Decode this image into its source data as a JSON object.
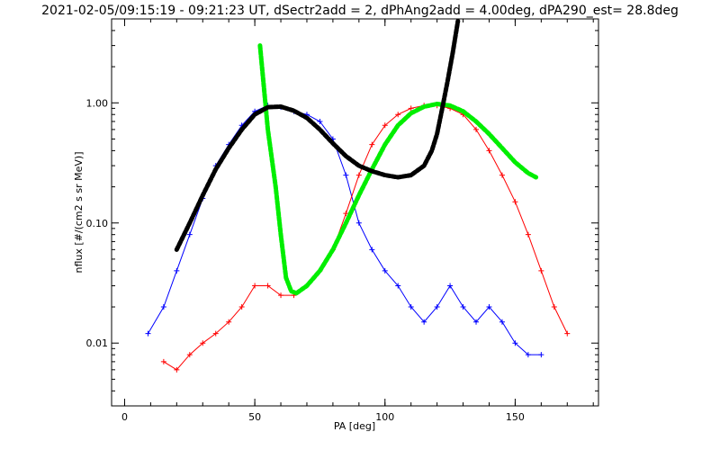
{
  "header": {
    "title": "2021-02-05/09:15:19 - 09:21:23 UT, dSectr2add = 2, dPhAng2add = 4.00deg, dPA290_est=  28.8deg"
  },
  "colors": {
    "blue": "#0000ff",
    "red": "#ff0000",
    "green": "#00ee00",
    "black": "#000000"
  },
  "chart_data": {
    "type": "scatter",
    "xlabel": "PA [deg]",
    "ylabel": "nflux [#/(cm2 s sr MeV)]",
    "xlim": [
      -5,
      182
    ],
    "ylim": [
      0.003,
      5.0
    ],
    "yscale": "log",
    "grid": false,
    "x_ticks": [
      0,
      50,
      100,
      150
    ],
    "x_tick_labels": [
      "0",
      "50",
      "100",
      "150"
    ],
    "y_ticks": [
      0.01,
      0.1,
      1.0
    ],
    "y_tick_labels": [
      "0.01",
      "0.10",
      "1.00"
    ],
    "series": [
      {
        "color": "blue",
        "style": "line+cross",
        "x": [
          9,
          15,
          20,
          25,
          30,
          35,
          40,
          45,
          50,
          55,
          60,
          65,
          70,
          75,
          80,
          85,
          90,
          95,
          100,
          105,
          110,
          115,
          120,
          125,
          130,
          135,
          140,
          145,
          150,
          155,
          160
        ],
        "y": [
          0.012,
          0.02,
          0.04,
          0.08,
          0.16,
          0.3,
          0.45,
          0.65,
          0.85,
          0.95,
          0.92,
          0.85,
          0.8,
          0.7,
          0.5,
          0.25,
          0.1,
          0.06,
          0.04,
          0.03,
          0.02,
          0.015,
          0.02,
          0.03,
          0.02,
          0.015,
          0.02,
          0.015,
          0.01,
          0.008,
          0.008
        ]
      },
      {
        "color": "red",
        "style": "line+cross",
        "x": [
          15,
          20,
          25,
          30,
          35,
          40,
          45,
          50,
          55,
          60,
          65,
          70,
          75,
          80,
          85,
          90,
          95,
          100,
          105,
          110,
          115,
          120,
          125,
          130,
          135,
          140,
          145,
          150,
          155,
          160,
          165,
          170
        ],
        "y": [
          0.007,
          0.006,
          0.008,
          0.01,
          0.012,
          0.015,
          0.02,
          0.03,
          0.03,
          0.025,
          0.025,
          0.03,
          0.04,
          0.06,
          0.12,
          0.25,
          0.45,
          0.65,
          0.8,
          0.9,
          0.95,
          0.95,
          0.9,
          0.8,
          0.6,
          0.4,
          0.25,
          0.15,
          0.08,
          0.04,
          0.02,
          0.012
        ]
      },
      {
        "color": "green",
        "style": "thick-dotted",
        "x": [
          52,
          55,
          58,
          60,
          62,
          64,
          66,
          70,
          75,
          80,
          85,
          90,
          95,
          100,
          105,
          110,
          115,
          120,
          125,
          130,
          135,
          140,
          145,
          150,
          155,
          158
        ],
        "y": [
          3.0,
          0.6,
          0.2,
          0.08,
          0.035,
          0.027,
          0.026,
          0.03,
          0.04,
          0.06,
          0.1,
          0.17,
          0.28,
          0.45,
          0.65,
          0.82,
          0.93,
          0.98,
          0.95,
          0.85,
          0.7,
          0.55,
          0.42,
          0.32,
          0.26,
          0.24
        ]
      },
      {
        "color": "black",
        "style": "thick-dotted",
        "x": [
          20,
          25,
          30,
          35,
          40,
          45,
          50,
          55,
          60,
          65,
          70,
          75,
          80,
          85,
          90,
          95,
          100,
          105,
          110,
          115,
          118,
          120,
          122,
          124,
          126,
          128
        ],
        "y": [
          0.06,
          0.1,
          0.17,
          0.28,
          0.42,
          0.6,
          0.8,
          0.92,
          0.93,
          0.86,
          0.75,
          0.6,
          0.46,
          0.36,
          0.3,
          0.27,
          0.25,
          0.24,
          0.25,
          0.3,
          0.4,
          0.55,
          0.9,
          1.5,
          2.6,
          4.8
        ]
      }
    ]
  }
}
